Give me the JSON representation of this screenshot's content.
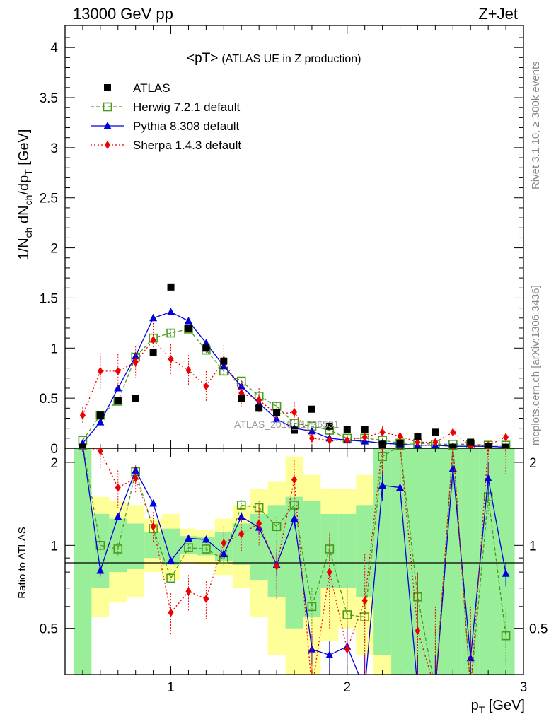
{
  "header": {
    "left": "13000 GeV pp",
    "right": "Z+Jet",
    "side_rivet": "Rivet 3.1.10, ≥ 300k events",
    "side_mcplots": "mcplots.cern.ch [arXiv:1306.3436]"
  },
  "chart_data": {
    "type": "scatter",
    "title_main": "<pT>",
    "title_sub": "(ATLAS UE in Z production)",
    "watermark": "ATLAS_2019_I1736531",
    "xlabel": "p_T [GeV]",
    "ylabel": "1/N_ch dN_ch/dp_T [GeV]",
    "ratio_ylabel": "Ratio to ATLAS",
    "xlim": [
      0.4,
      3.0
    ],
    "ylim": [
      0,
      4.22
    ],
    "ratio_ylim": [
      0.34,
      2.25
    ],
    "x_ticks": [
      "1",
      "2",
      "3"
    ],
    "y_ticks": [
      "0",
      "0.5",
      "1",
      "1.5",
      "2",
      "2.5",
      "3",
      "3.5",
      "4"
    ],
    "ratio_ticks": [
      "0.5",
      "1",
      "2"
    ],
    "x": [
      0.5,
      0.6,
      0.7,
      0.8,
      0.9,
      1.0,
      1.1,
      1.2,
      1.3,
      1.4,
      1.5,
      1.6,
      1.7,
      1.8,
      1.9,
      2.0,
      2.1,
      2.2,
      2.3,
      2.4,
      2.5,
      2.6,
      2.7,
      2.8,
      2.9
    ],
    "series": [
      {
        "name": "ATLAS",
        "color": "#000000",
        "values": [
          0.01,
          0.33,
          0.48,
          0.5,
          0.96,
          1.61,
          1.2,
          1.0,
          0.87,
          0.5,
          0.4,
          0.36,
          0.18,
          0.39,
          0.22,
          0.19,
          0.19,
          0.04,
          0.05,
          0.12,
          0.16,
          0.01,
          0.06,
          0.02,
          0.01
        ]
      },
      {
        "name": "Herwig 7.2.1 default",
        "color": "#4a9a1a",
        "values": [
          0.08,
          0.33,
          0.47,
          0.91,
          1.1,
          1.15,
          1.19,
          0.98,
          0.77,
          0.67,
          0.52,
          0.42,
          0.25,
          0.22,
          0.18,
          0.1,
          0.1,
          0.08,
          0.05,
          0.05,
          0.04,
          0.04,
          0.04,
          0.03,
          0.03
        ],
        "ratio": [
          2.3,
          1.0,
          0.97,
          1.85,
          1.15,
          0.76,
          0.98,
          0.97,
          0.89,
          1.4,
          1.37,
          1.17,
          1.4,
          0.6,
          0.97,
          0.56,
          0.55,
          2.1,
          2.3,
          0.65,
          0.3,
          2.3,
          0.3,
          1.5,
          0.47
        ],
        "ratio_err": [
          0,
          0.06,
          0.05,
          0.04,
          0.04,
          0.03,
          0.03,
          0.04,
          0.05,
          0.06,
          0.08,
          0.1,
          0.12,
          0.1,
          0.15,
          0.12,
          0.15,
          0.2,
          0.3,
          0.15,
          0.2,
          0.3,
          0.2,
          0.2,
          0.1
        ]
      },
      {
        "name": "Pythia 8.308 default",
        "color": "#0000dd",
        "values": [
          0.05,
          0.26,
          0.6,
          0.92,
          1.3,
          1.36,
          1.27,
          1.05,
          0.82,
          0.62,
          0.45,
          0.29,
          0.2,
          0.17,
          0.1,
          0.08,
          0.07,
          0.05,
          0.04,
          0.03,
          0.03,
          0.02,
          0.02,
          0.02,
          0.01
        ],
        "ratio": [
          2.3,
          0.81,
          1.27,
          1.87,
          1.42,
          0.88,
          1.06,
          1.05,
          0.93,
          1.27,
          1.16,
          0.85,
          1.25,
          0.42,
          0.4,
          0.43,
          0.3,
          1.65,
          1.62,
          0.3,
          0.3,
          1.9,
          0.39,
          1.75,
          0.79
        ],
        "ratio_err": [
          0,
          0.04,
          0.04,
          0.05,
          0.03,
          0.02,
          0.02,
          0.03,
          0.04,
          0.05,
          0.06,
          0.08,
          0.1,
          0.05,
          0.05,
          0.08,
          0.1,
          0.2,
          0.2,
          0.1,
          0.1,
          0.3,
          0.1,
          0.25,
          0.08
        ]
      },
      {
        "name": "Sherpa 1.4.3 default",
        "color": "#ee0000",
        "values": [
          0.33,
          0.77,
          0.77,
          0.86,
          1.08,
          0.89,
          0.78,
          0.62,
          0.88,
          0.55,
          0.48,
          0.34,
          0.36,
          0.1,
          0.08,
          0.08,
          0.11,
          0.16,
          0.12,
          0.06,
          0.06,
          0.16,
          0.02,
          0.03,
          0.11
        ],
        "ratio": [
          2.3,
          2.2,
          1.62,
          1.75,
          1.17,
          0.57,
          0.68,
          0.64,
          1.02,
          1.1,
          1.2,
          0.84,
          1.73,
          0.3,
          0.8,
          0.42,
          0.63,
          2.3,
          2.3,
          0.49,
          0.3,
          2.3,
          0.3,
          2.3,
          2.3
        ],
        "ratio_err": [
          0,
          0.3,
          0.25,
          0.2,
          0.15,
          0.1,
          0.1,
          0.1,
          0.15,
          0.15,
          0.2,
          0.2,
          0.3,
          0.2,
          0.3,
          0.3,
          0.3,
          0.5,
          0.5,
          0.3,
          0.3,
          0.5,
          0.3,
          0.5,
          0.5
        ]
      }
    ],
    "main_err": {
      "herwig": [
        0.0,
        0.03,
        0.03,
        0.03,
        0.04,
        0.04,
        0.04,
        0.04,
        0.04,
        0.04,
        0.04,
        0.04,
        0.03,
        0.03,
        0.03,
        0.02,
        0.02,
        0.02,
        0.02,
        0.02,
        0.01,
        0.01,
        0.01,
        0.01,
        0.01
      ],
      "pythia": [
        0.0,
        0.03,
        0.03,
        0.03,
        0.03,
        0.03,
        0.03,
        0.03,
        0.03,
        0.03,
        0.03,
        0.03,
        0.02,
        0.02,
        0.02,
        0.02,
        0.02,
        0.01,
        0.01,
        0.01,
        0.01,
        0.01,
        0.01,
        0.01,
        0.01
      ],
      "sherpa": [
        0.08,
        0.18,
        0.17,
        0.16,
        0.17,
        0.15,
        0.15,
        0.15,
        0.15,
        0.13,
        0.12,
        0.11,
        0.1,
        0.08,
        0.07,
        0.06,
        0.06,
        0.06,
        0.05,
        0.04,
        0.04,
        0.04,
        0.03,
        0.03,
        0.03
      ]
    },
    "bands": {
      "green_lo": [
        0.34,
        0.7,
        0.8,
        0.82,
        0.9,
        0.85,
        0.93,
        0.92,
        0.88,
        0.85,
        0.75,
        0.65,
        0.5,
        0.55,
        0.7,
        0.7,
        0.65,
        0.4,
        0.34,
        0.34,
        0.34,
        0.34,
        0.34,
        0.34,
        0.34
      ],
      "green_hi": [
        2.25,
        1.3,
        1.25,
        1.2,
        1.12,
        1.15,
        1.08,
        1.07,
        1.12,
        1.2,
        1.3,
        1.4,
        1.5,
        1.45,
        1.3,
        1.3,
        1.4,
        2.25,
        2.25,
        2.25,
        2.25,
        2.25,
        2.25,
        2.25,
        2.25
      ],
      "yellow_lo": [
        0.34,
        0.55,
        0.62,
        0.65,
        0.8,
        0.75,
        0.86,
        0.85,
        0.78,
        0.7,
        0.55,
        0.4,
        0.34,
        0.34,
        0.45,
        0.5,
        0.4,
        0.34,
        0.34,
        0.34,
        0.34,
        0.34,
        0.34,
        0.34,
        0.34
      ],
      "yellow_hi": [
        2.25,
        1.5,
        1.45,
        1.4,
        1.25,
        1.3,
        1.15,
        1.14,
        1.25,
        1.4,
        1.6,
        1.7,
        2.1,
        1.8,
        1.6,
        1.6,
        1.8,
        2.25,
        2.25,
        2.25,
        2.25,
        2.25,
        2.25,
        2.25,
        2.25
      ]
    }
  }
}
